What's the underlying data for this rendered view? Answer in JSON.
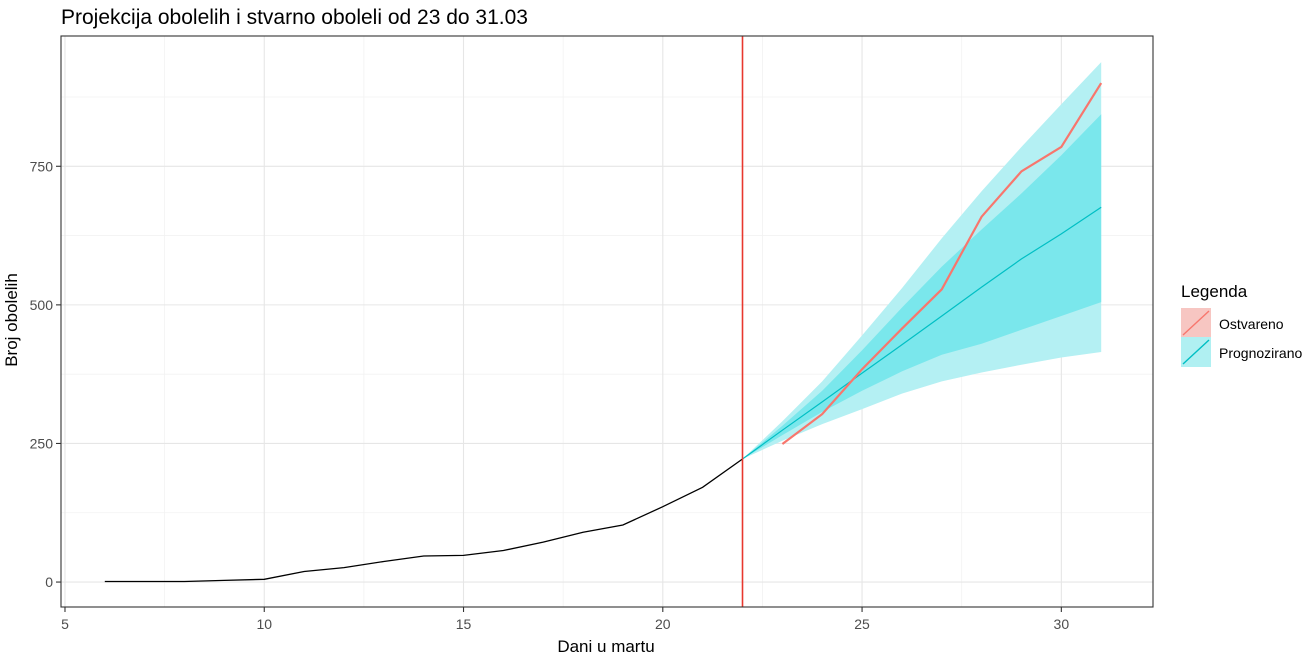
{
  "chart_data": {
    "type": "line",
    "title": "Projekcija obolelih i stvarno oboleli od 23 do 31.03",
    "xlabel": "Dani u martu",
    "ylabel": "Broj obolelih",
    "xlim": [
      4.9,
      32.3
    ],
    "ylim": [
      -45,
      985
    ],
    "x_ticks": [
      5,
      10,
      15,
      20,
      25,
      30
    ],
    "y_ticks": [
      0,
      250,
      500,
      750
    ],
    "x_tick_labels": [
      "5",
      "10",
      "15",
      "20",
      "25",
      "30"
    ],
    "y_tick_labels": [
      "0",
      "250",
      "500",
      "750"
    ],
    "grid": true,
    "vline": {
      "x": 22,
      "color": "#e8382e"
    },
    "legend": {
      "title": "Legenda",
      "position": "right",
      "entries": [
        {
          "label": "Ostvareno",
          "color": "#f8766d",
          "fill": "#f7c6c2"
        },
        {
          "label": "Prognozirano",
          "color": "#00bfc4",
          "fill": "#b0f0f2"
        }
      ]
    },
    "series": [
      {
        "color": "#000000",
        "x": [
          6,
          7,
          8,
          9,
          10,
          11,
          12,
          13,
          14,
          15,
          16,
          17,
          18,
          19,
          20,
          21,
          22
        ],
        "y": [
          1,
          1,
          1,
          3,
          5,
          19,
          26,
          37,
          47,
          48,
          57,
          72,
          90,
          103,
          136,
          171,
          222
        ]
      },
      {
        "name": "Ostvareno",
        "color": "#f8766d",
        "x": [
          23,
          24,
          25,
          26,
          27,
          28,
          29,
          30,
          31
        ],
        "y": [
          249,
          303,
          384,
          457,
          528,
          659,
          741,
          785,
          900
        ]
      },
      {
        "name": "Prognozirano",
        "color": "#00bfc4",
        "x": [
          22,
          23,
          24,
          25,
          26,
          27,
          28,
          29,
          30,
          31
        ],
        "y": [
          222,
          274,
          325,
          377,
          428,
          480,
          532,
          583,
          628,
          676
        ],
        "band80_upper": [
          222,
          282,
          345,
          418,
          495,
          569,
          636,
          701,
          770,
          844
        ],
        "band80_lower": [
          222,
          265,
          307,
          345,
          380,
          410,
          430,
          455,
          480,
          505
        ],
        "band95_upper": [
          222,
          290,
          362,
          445,
          530,
          620,
          705,
          785,
          862,
          938
        ],
        "band95_lower": [
          222,
          255,
          285,
          312,
          340,
          362,
          378,
          392,
          405,
          415
        ]
      }
    ]
  }
}
